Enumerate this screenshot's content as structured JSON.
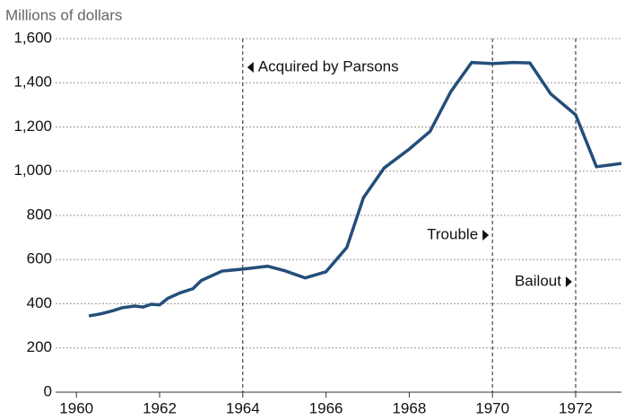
{
  "chart_data": {
    "type": "line",
    "y_axis_label": "Millions of dollars",
    "x": [
      1960.3,
      1960.6,
      1960.9,
      1961.1,
      1961.4,
      1961.6,
      1961.8,
      1962.0,
      1962.2,
      1962.5,
      1962.8,
      1963.0,
      1963.5,
      1964.0,
      1964.6,
      1965.0,
      1965.5,
      1966.0,
      1966.5,
      1966.9,
      1967.4,
      1968.0,
      1968.5,
      1969.0,
      1969.5,
      1970.0,
      1970.5,
      1970.9,
      1971.4,
      1972.0,
      1972.5,
      1973.1
    ],
    "series": [
      {
        "name": "Millions of dollars",
        "color": "#234e7a",
        "values": [
          345,
          355,
          370,
          382,
          390,
          385,
          398,
          395,
          425,
          450,
          468,
          505,
          548,
          557,
          570,
          550,
          517,
          545,
          655,
          880,
          1015,
          1100,
          1180,
          1360,
          1492,
          1487,
          1492,
          1490,
          1350,
          1255,
          1020,
          1035
        ]
      }
    ],
    "xlim": [
      1959.5,
      1973.1
    ],
    "ylim": [
      0,
      1600
    ],
    "xticks": [
      1960,
      1962,
      1964,
      1966,
      1968,
      1970,
      1972
    ],
    "yticks": [
      0,
      200,
      400,
      600,
      800,
      {
        "value": 1000,
        "label": "1,000"
      },
      {
        "value": 1200,
        "label": "1,200"
      },
      {
        "value": 1400,
        "label": "1,400"
      },
      {
        "value": 1600,
        "label": "1,600"
      }
    ],
    "grid": true,
    "annotations": [
      {
        "text": "Acquired by Parsons",
        "x": 1964,
        "side": "right"
      },
      {
        "text": "Trouble",
        "x": 1970,
        "side": "left"
      },
      {
        "text": "Bailout",
        "x": 1972,
        "side": "left"
      }
    ]
  }
}
